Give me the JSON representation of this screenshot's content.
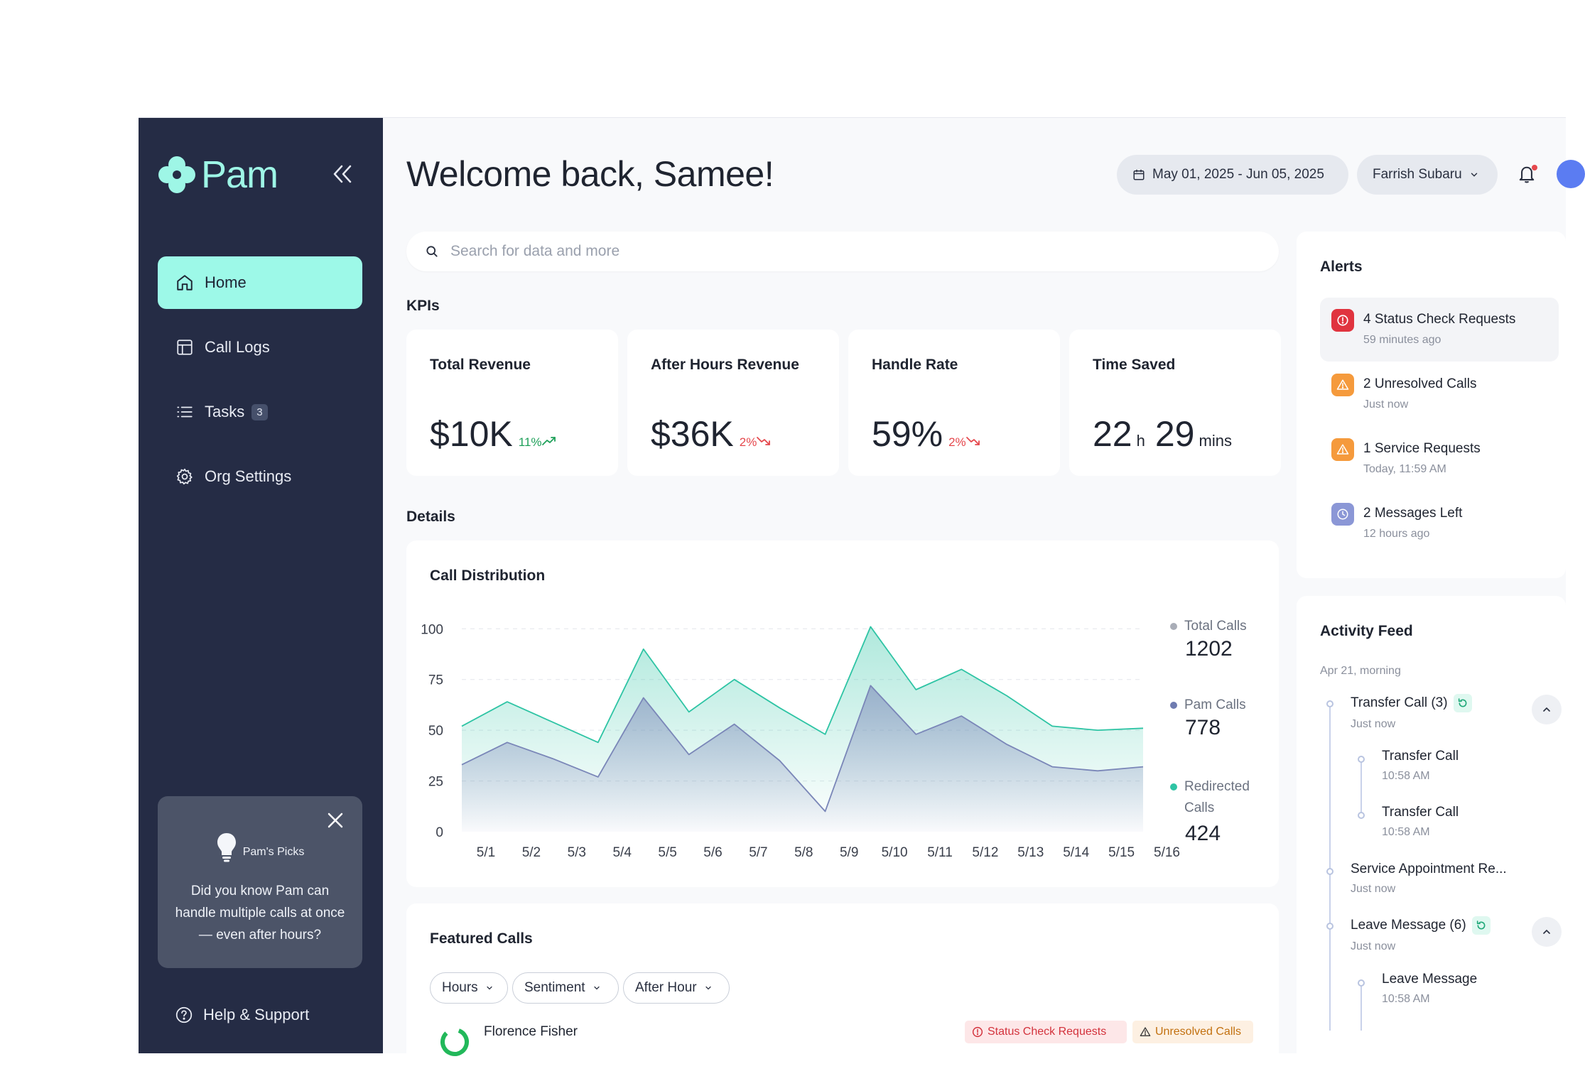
{
  "app": {
    "name": "Pam"
  },
  "sidebar": {
    "items": [
      {
        "label": "Home"
      },
      {
        "label": "Call Logs"
      },
      {
        "label": "Tasks",
        "badge": "3"
      },
      {
        "label": "Org Settings"
      }
    ],
    "picks": {
      "title": "Pam's Picks",
      "body": "Did you know Pam can handle multiple calls at once — even after hours?"
    },
    "help": "Help & Support"
  },
  "header": {
    "greeting": "Welcome back,",
    "name": "Samee!",
    "date_range": "May 01, 2025 - Jun 05, 2025",
    "dealer": "Farrish Subaru"
  },
  "search": {
    "placeholder": "Search for data and more"
  },
  "kpis": {
    "label": "KPIs",
    "cards": [
      {
        "title": "Total Revenue",
        "value": "$10K",
        "delta": "11%",
        "trend": "up"
      },
      {
        "title": "After Hours Revenue",
        "value": "$36K",
        "delta": "2%",
        "trend": "down"
      },
      {
        "title": "Handle Rate",
        "value": "59%",
        "delta": "2%",
        "trend": "down"
      },
      {
        "title": "Time Saved",
        "hours": "22",
        "hours_unit": "h",
        "mins": "29",
        "mins_unit": "mins"
      }
    ]
  },
  "details": {
    "label": "Details"
  },
  "chart_data": {
    "type": "area",
    "title": "Call Distribution",
    "categories": [
      "5/1",
      "5/2",
      "5/3",
      "5/4",
      "5/5",
      "5/6",
      "5/7",
      "5/8",
      "5/9",
      "5/10",
      "5/11",
      "5/12",
      "5/13",
      "5/14",
      "5/15",
      "5/16"
    ],
    "y_ticks": [
      "100",
      "75",
      "50",
      "25",
      "0"
    ],
    "ylim": [
      0,
      105
    ],
    "grid": true,
    "legend_position": "right",
    "series": [
      {
        "name": "Redirected Calls",
        "color": "#2ec4a4",
        "values": [
          52,
          64,
          54,
          44,
          90,
          59,
          75,
          61,
          48,
          101,
          70,
          80,
          67,
          52,
          50,
          51
        ]
      },
      {
        "name": "Pam Calls",
        "color": "#7a86b8",
        "values": [
          33,
          44,
          36,
          27,
          66,
          38,
          53,
          35,
          10,
          72,
          48,
          57,
          43,
          32,
          30,
          32
        ]
      }
    ],
    "legend": [
      {
        "name": "Total Calls",
        "value": "1202",
        "color": "#a9adb7"
      },
      {
        "name": "Pam Calls",
        "value": "778",
        "color": "#6f7bb0"
      },
      {
        "name": "Redirected Calls",
        "value": "424",
        "color": "#2ec4a4"
      }
    ]
  },
  "featured": {
    "title": "Featured Calls",
    "filters": [
      "Hours",
      "Sentiment",
      "After Hour"
    ],
    "first_row": {
      "name": "Florence Fisher"
    },
    "tags": [
      "Status Check Requests",
      "Unresolved Calls"
    ]
  },
  "alerts": {
    "title": "Alerts",
    "items": [
      {
        "title": "4 Status Check Requests",
        "sub": "59 minutes ago",
        "color": "#e0343f"
      },
      {
        "title": "2 Unresolved Calls",
        "sub": "Just now",
        "color": "#f59a3c"
      },
      {
        "title": "1 Service Requests",
        "sub": "Today, 11:59 AM",
        "color": "#f59a3c"
      },
      {
        "title": "2 Messages Left",
        "sub": "12 hours ago",
        "color": "#8b97d6"
      }
    ]
  },
  "activity": {
    "title": "Activity Feed",
    "group": "Apr 21, morning",
    "items": [
      {
        "title": "Transfer Call (3)",
        "sub": "Just now"
      },
      {
        "title": "Transfer Call",
        "sub": "10:58 AM"
      },
      {
        "title": "Transfer Call",
        "sub": "10:58 AM"
      },
      {
        "title": "Service Appointment Re...",
        "sub": "Just now"
      },
      {
        "title": "Leave Message (6)",
        "sub": "Just now"
      },
      {
        "title": "Leave Message",
        "sub": "10:58 AM"
      }
    ]
  }
}
